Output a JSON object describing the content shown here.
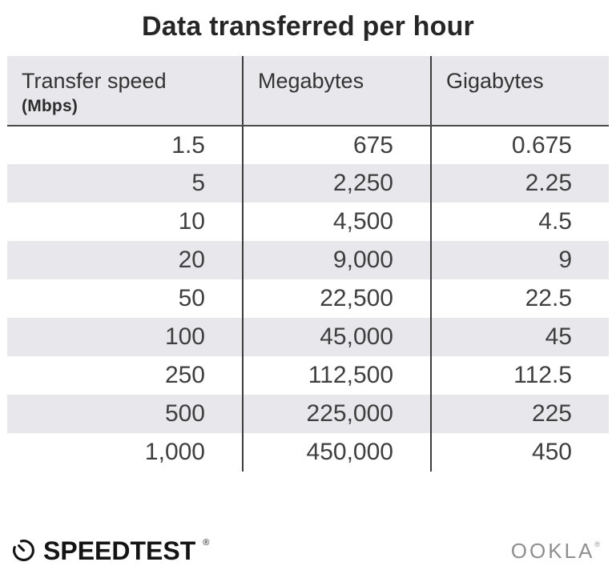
{
  "title": "Data transferred per hour",
  "table": {
    "columns": [
      {
        "label": "Transfer speed",
        "sublabel": "(Mbps)"
      },
      {
        "label": "Megabytes",
        "sublabel": ""
      },
      {
        "label": "Gigabytes",
        "sublabel": ""
      }
    ],
    "rows": [
      [
        "1.5",
        "675",
        "0.675"
      ],
      [
        "5",
        "2,250",
        "2.25"
      ],
      [
        "10",
        "4,500",
        "4.5"
      ],
      [
        "20",
        "9,000",
        "9"
      ],
      [
        "50",
        "22,500",
        "22.5"
      ],
      [
        "100",
        "45,000",
        "45"
      ],
      [
        "250",
        "112,500",
        "112.5"
      ],
      [
        "500",
        "225,000",
        "225"
      ],
      [
        "1,000",
        "450,000",
        "450"
      ]
    ]
  },
  "footer": {
    "speedtest_label": "SPEEDTEST",
    "speedtest_mark": "®",
    "ookla_label": "OOKLA",
    "ookla_mark": "®"
  },
  "colors": {
    "stripe_and_header_bg": "#e8e7ec",
    "divider": "#3d3d3d",
    "header_rule": "#4a4a4a",
    "body_text": "#3f3f3f",
    "title_text": "#262626",
    "speedtest_black": "#141414",
    "ookla_gray": "#8f8f8f"
  },
  "chart_data": {
    "type": "table",
    "title": "Data transferred per hour",
    "columns": [
      "Transfer speed (Mbps)",
      "Megabytes",
      "Gigabytes"
    ],
    "rows": [
      [
        1.5,
        675,
        0.675
      ],
      [
        5,
        2250,
        2.25
      ],
      [
        10,
        4500,
        4.5
      ],
      [
        20,
        9000,
        9
      ],
      [
        50,
        22500,
        22.5
      ],
      [
        100,
        45000,
        45
      ],
      [
        250,
        112500,
        112.5
      ],
      [
        500,
        225000,
        225
      ],
      [
        1000,
        450000,
        450
      ]
    ],
    "layout": "header row shaded light gray, alternating light-gray row stripes starting at second data row, dark vertical column dividers, dark rule under header, numeric cells right-aligned"
  }
}
